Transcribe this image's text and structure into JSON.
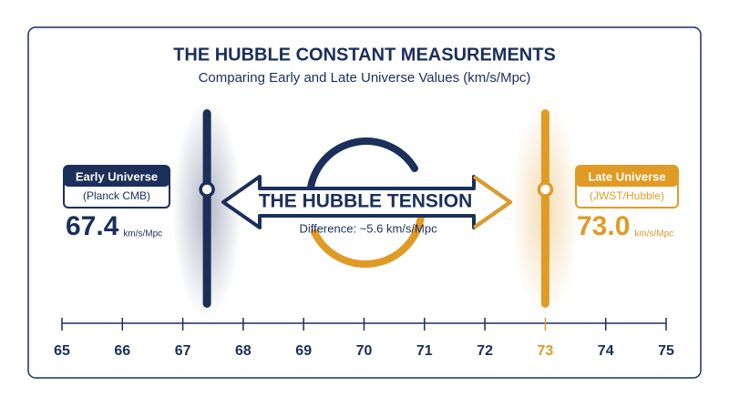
{
  "chart_data": {
    "type": "marker",
    "title": "THE HUBBLE CONSTANT MEASUREMENTS",
    "subtitle": "Comparing Early and Late Universe Values (km/s/Mpc)",
    "xlim": [
      65,
      75
    ],
    "xticks": [
      65,
      66,
      67,
      68,
      69,
      70,
      71,
      72,
      73,
      74,
      75
    ],
    "series": [
      {
        "name": "Early Universe",
        "source": "(Planck CMB)",
        "color": "#1b2f5a",
        "values": [
          67.4
        ],
        "unit": "km/s/Mpc"
      },
      {
        "name": "Late Universe",
        "source": "(JWST/Hubble)",
        "color": "#e09b26",
        "values": [
          73.0
        ],
        "value_labels": [
          "73.0"
        ],
        "unit": "km/s/Mpc"
      }
    ],
    "annotation": {
      "title": "THE HUBBLE TENSION",
      "text": "Difference: ~5.6 km/s/Mpc"
    }
  }
}
